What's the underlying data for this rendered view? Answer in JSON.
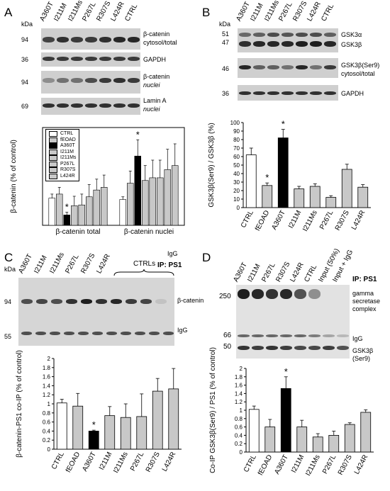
{
  "panels": {
    "A": {
      "label": "A",
      "kda": "kDa",
      "lanes": [
        "A360T",
        "I211M",
        "I211Ms",
        "P267L",
        "R307S",
        "L424R",
        "CTRL"
      ],
      "blots": [
        {
          "mw": "94",
          "label_line1": "β-catenin",
          "label_line2": "cytosol/total",
          "italic2": false
        },
        {
          "mw": "36",
          "label_line1": "GAPDH",
          "label_line2": "",
          "italic2": false
        },
        {
          "mw": "94",
          "label_line1": "β-catenin",
          "label_line2": "nuclei",
          "italic2": true
        },
        {
          "mw": "69",
          "label_line1": "Lamin A",
          "label_line2": "nuclei",
          "italic2": true
        }
      ]
    },
    "B": {
      "label": "B",
      "kda": "kDa",
      "lanes": [
        "A360T",
        "I211M",
        "I211Ms",
        "P267L",
        "R307S",
        "L424R",
        "CTRL"
      ],
      "blots": [
        {
          "mw": "51",
          "mw2": "47",
          "label_line1": "GSK3α",
          "label_line2": "GSK3β"
        },
        {
          "mw": "46",
          "label_line1": "GSK3β(Ser9)",
          "label_line2": "cytosol/total"
        },
        {
          "mw": "36",
          "label_line1": "GAPDH",
          "label_line2": ""
        }
      ]
    },
    "C": {
      "label": "C",
      "kda": "kDa",
      "ip": "IP: PS1",
      "ctrls": "CTRLs",
      "igg_top": "IgG",
      "lanes": [
        "A360T",
        "I211M",
        "I211Ms",
        "P267L",
        "R307S",
        "L424R"
      ],
      "mw_top": "94",
      "mw_bot": "55",
      "band_top": "β-catenin",
      "band_bot": "IgG"
    },
    "D": {
      "label": "D",
      "ip": "IP: PS1",
      "lanes": [
        "A360T",
        "I211M",
        "P267L",
        "R307S",
        "L424R",
        "CTRL",
        "Input (50%)",
        "Input + IgG"
      ],
      "mw": [
        "250",
        "66",
        "50"
      ],
      "band_labels": [
        "gamma",
        "secretase",
        "complex",
        "IgG",
        "GSK3β",
        "(Ser9)"
      ]
    }
  },
  "chart_data": [
    {
      "id": "A",
      "type": "bar",
      "ylabel": "β-catenin (% of control)",
      "groups": [
        "β-catenin total",
        "β-catenin nuclei"
      ],
      "legend": [
        "CTRL",
        "fEOAD",
        "A360T",
        "I211M",
        "I211Ms",
        "P267L",
        "R307S",
        "L424R"
      ],
      "colors": [
        "#ffffff",
        "#c8c8c8",
        "#000000",
        "#c8c8c8",
        "#c8c8c8",
        "#c8c8c8",
        "#c8c8c8",
        "#c8c8c8"
      ],
      "values": [
        [
          1.0,
          1.15,
          0.38,
          0.72,
          0.75,
          1.05,
          1.3,
          1.4
        ],
        [
          0.95,
          1.55,
          2.55,
          1.65,
          1.75,
          1.75,
          2.05,
          2.2
        ]
      ],
      "errors": [
        [
          0.15,
          0.25,
          0.1,
          0.35,
          0.4,
          0.45,
          0.4,
          0.45
        ],
        [
          0.1,
          0.45,
          0.6,
          0.55,
          0.65,
          0.65,
          0.75,
          0.8
        ]
      ],
      "stars": [
        [
          2
        ],
        [
          2
        ]
      ],
      "ylim": [
        0,
        3.6
      ]
    },
    {
      "id": "B",
      "type": "bar",
      "ylabel": "GSK3β(Ser9) / GSK3β (%)",
      "categories": [
        "CTRL",
        "fEOAD",
        "A360T",
        "I211M",
        "I211Ms",
        "P267L",
        "R307S",
        "L424R"
      ],
      "colors": [
        "#ffffff",
        "#c8c8c8",
        "#000000",
        "#c8c8c8",
        "#c8c8c8",
        "#c8c8c8",
        "#c8c8c8",
        "#c8c8c8"
      ],
      "values": [
        62,
        26,
        82,
        22,
        25,
        12,
        45,
        24
      ],
      "errors": [
        8,
        3,
        10,
        3,
        3,
        2,
        6,
        3
      ],
      "stars": [
        1,
        2
      ],
      "yticks": [
        0,
        10,
        20,
        30,
        40,
        50,
        60,
        70,
        80,
        90,
        100
      ],
      "ylim": [
        0,
        100
      ]
    },
    {
      "id": "C",
      "type": "bar",
      "ylabel": "β-catenin-PS1 co-IP (% of control)",
      "categories": [
        "CTRL",
        "fEOAD",
        "A360T",
        "I211M",
        "I211Ms",
        "P267L",
        "R307S",
        "L424R"
      ],
      "colors": [
        "#ffffff",
        "#c8c8c8",
        "#000000",
        "#c8c8c8",
        "#c8c8c8",
        "#c8c8c8",
        "#c8c8c8",
        "#c8c8c8"
      ],
      "values": [
        1.02,
        0.95,
        0.4,
        0.74,
        0.7,
        0.72,
        1.28,
        1.33
      ],
      "errors": [
        0.08,
        0.28,
        0.02,
        0.2,
        0.3,
        0.5,
        0.28,
        0.45
      ],
      "stars": [
        2
      ],
      "yticks": [
        0,
        0.2,
        0.4,
        0.6,
        0.8,
        1,
        1.2,
        1.4,
        1.6,
        1.8,
        2
      ],
      "ylim": [
        0,
        2
      ]
    },
    {
      "id": "D",
      "type": "bar",
      "ylabel": "Co-IP GSK3β(Ser9) / PS1 (% of control)",
      "categories": [
        "CTRL",
        "fEOAD",
        "A360T",
        "I211M",
        "I211Ms",
        "P267L",
        "R307S",
        "L424R"
      ],
      "colors": [
        "#ffffff",
        "#c8c8c8",
        "#000000",
        "#c8c8c8",
        "#c8c8c8",
        "#c8c8c8",
        "#c8c8c8",
        "#c8c8c8"
      ],
      "values": [
        1.02,
        0.6,
        1.52,
        0.6,
        0.36,
        0.4,
        0.66,
        0.95
      ],
      "errors": [
        0.08,
        0.18,
        0.28,
        0.16,
        0.08,
        0.1,
        0.04,
        0.06
      ],
      "stars": [
        2
      ],
      "yticks": [
        0,
        0.2,
        0.4,
        0.6,
        0.8,
        1,
        1.2,
        1.4,
        1.6,
        1.8,
        2
      ],
      "ylim": [
        0,
        2
      ]
    }
  ]
}
